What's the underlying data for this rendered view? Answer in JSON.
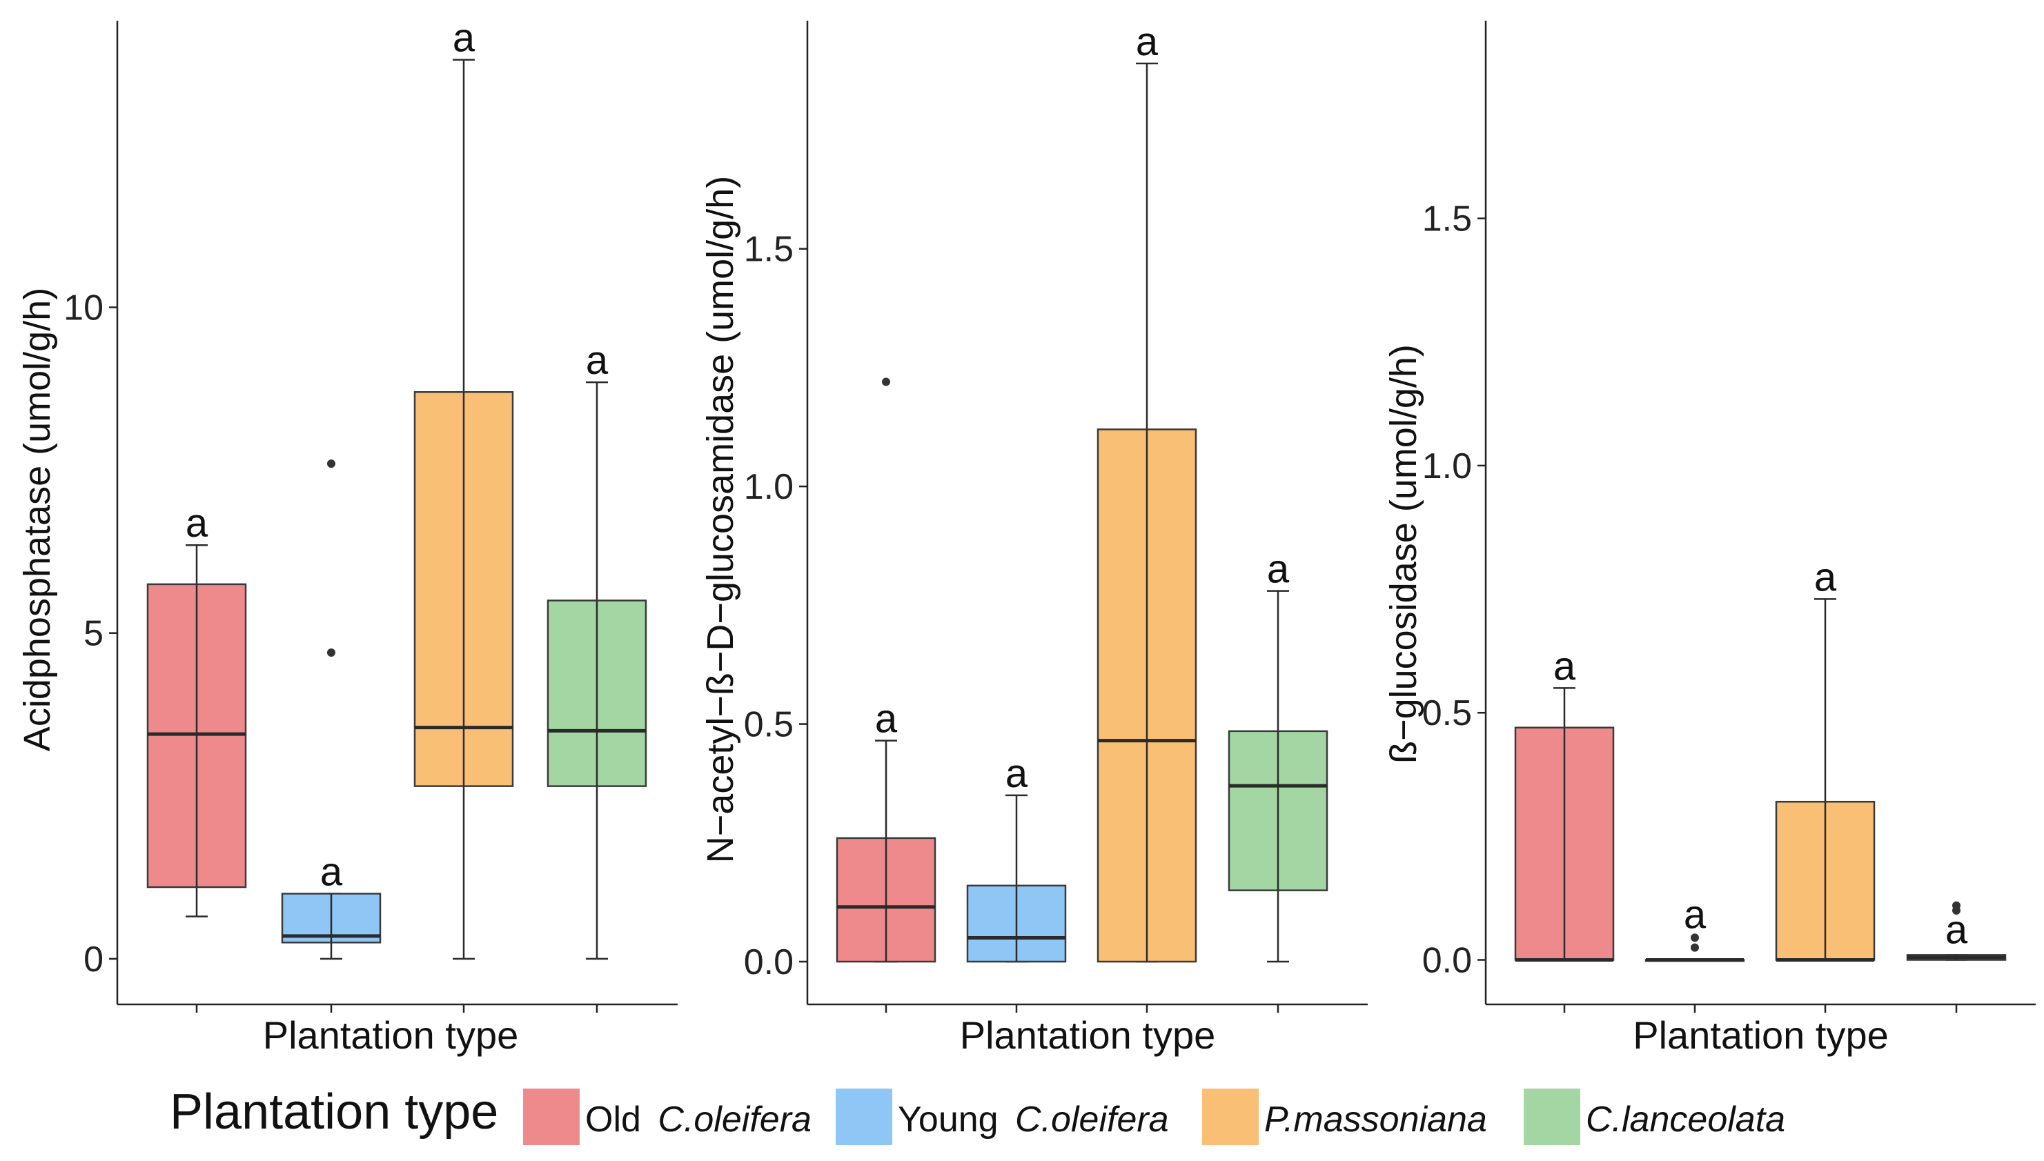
{
  "chart_data": [
    {
      "type": "boxplot",
      "xlabel": "Plantation type",
      "ylabel": "Acidphosphatase (umol/g/h)",
      "ylim": [
        -0.7,
        14.4
      ],
      "yticks": [
        0,
        5,
        10
      ],
      "ytick_labels": [
        "0",
        "5",
        "10"
      ],
      "boxes": [
        {
          "group": "Old C.oleifera",
          "whisker_low": 0.65,
          "q1": 1.1,
          "median": 3.45,
          "q3": 5.75,
          "whisker_high": 6.35,
          "outliers": [],
          "letter": "a"
        },
        {
          "group": "Young C.oleifera",
          "whisker_low": 0.0,
          "q1": 0.25,
          "median": 0.35,
          "q3": 1.0,
          "whisker_high": 1.0,
          "outliers": [
            7.6,
            4.7
          ],
          "letter": "a"
        },
        {
          "group": "P.massoniana",
          "whisker_low": 0.0,
          "q1": 2.65,
          "median": 3.55,
          "q3": 8.7,
          "whisker_high": 13.8,
          "outliers": [],
          "letter": "a"
        },
        {
          "group": "C.lanceolata",
          "whisker_low": 0.0,
          "q1": 2.65,
          "median": 3.5,
          "q3": 5.5,
          "whisker_high": 8.85,
          "outliers": [],
          "letter": "a"
        }
      ]
    },
    {
      "type": "boxplot",
      "xlabel": "Plantation type",
      "ylabel": "N−acetyl−ß−D−glucosamidase (umol/g/h)",
      "ylim": [
        -0.09,
        1.98
      ],
      "yticks": [
        0,
        0.5,
        1.0,
        1.5
      ],
      "ytick_labels": [
        "0.0",
        "0.5",
        "1.0",
        "1.5"
      ],
      "boxes": [
        {
          "group": "Old C.oleifera",
          "whisker_low": 0.0,
          "q1": 0.0,
          "median": 0.115,
          "q3": 0.26,
          "whisker_high": 0.465,
          "outliers": [
            1.22
          ],
          "letter": "a"
        },
        {
          "group": "Young C.oleifera",
          "whisker_low": 0.0,
          "q1": 0.0,
          "median": 0.05,
          "q3": 0.16,
          "whisker_high": 0.35,
          "outliers": [],
          "letter": "a"
        },
        {
          "group": "P.massoniana",
          "whisker_low": 0.0,
          "q1": 0.0,
          "median": 0.465,
          "q3": 1.12,
          "whisker_high": 1.89,
          "outliers": [],
          "letter": "a"
        },
        {
          "group": "C.lanceolata",
          "whisker_low": 0.0,
          "q1": 0.15,
          "median": 0.37,
          "q3": 0.485,
          "whisker_high": 0.78,
          "outliers": [],
          "letter": "a"
        }
      ]
    },
    {
      "type": "boxplot",
      "xlabel": "Plantation type",
      "ylabel": "ß−glucosidase (umol/g/h)",
      "ylim": [
        -0.09,
        1.9
      ],
      "yticks": [
        0,
        0.5,
        1.0,
        1.5
      ],
      "ytick_labels": [
        "0.0",
        "0.5",
        "1.0",
        "1.5"
      ],
      "boxes": [
        {
          "group": "Old C.oleifera",
          "whisker_low": 0.0,
          "q1": 0.0,
          "median": 0.0,
          "q3": 0.47,
          "whisker_high": 0.55,
          "outliers": [],
          "letter": "a"
        },
        {
          "group": "Young C.oleifera",
          "whisker_low": 0.0,
          "q1": 0.0,
          "median": 0.0,
          "q3": 0.0,
          "whisker_high": 0.0,
          "outliers": [
            0.025,
            0.045
          ],
          "letter": "a"
        },
        {
          "group": "P.massoniana",
          "whisker_low": 0.0,
          "q1": 0.0,
          "median": 0.0,
          "q3": 0.32,
          "whisker_high": 0.73,
          "outliers": [],
          "letter": "a"
        },
        {
          "group": "C.lanceolata",
          "whisker_low": 0.0,
          "q1": 0.0,
          "median": 0.005,
          "q3": 0.01,
          "whisker_high": 0.01,
          "outliers": [
            0.1,
            0.11
          ],
          "letter": "a"
        }
      ]
    }
  ],
  "legend": {
    "title": "Plantation type",
    "items": [
      {
        "prefix": "Old ",
        "italic": "C.oleifera",
        "color": "#ee8a8c"
      },
      {
        "prefix": "Young ",
        "italic": "C.oleifera",
        "color": "#8ec6f5"
      },
      {
        "prefix": "",
        "italic": "P.massoniana",
        "color": "#f9bf74"
      },
      {
        "prefix": "",
        "italic": "C.lanceolata",
        "color": "#a3d6a2"
      }
    ]
  },
  "colors": {
    "box_outline": "#3a3a3a",
    "axis": "#222222"
  }
}
